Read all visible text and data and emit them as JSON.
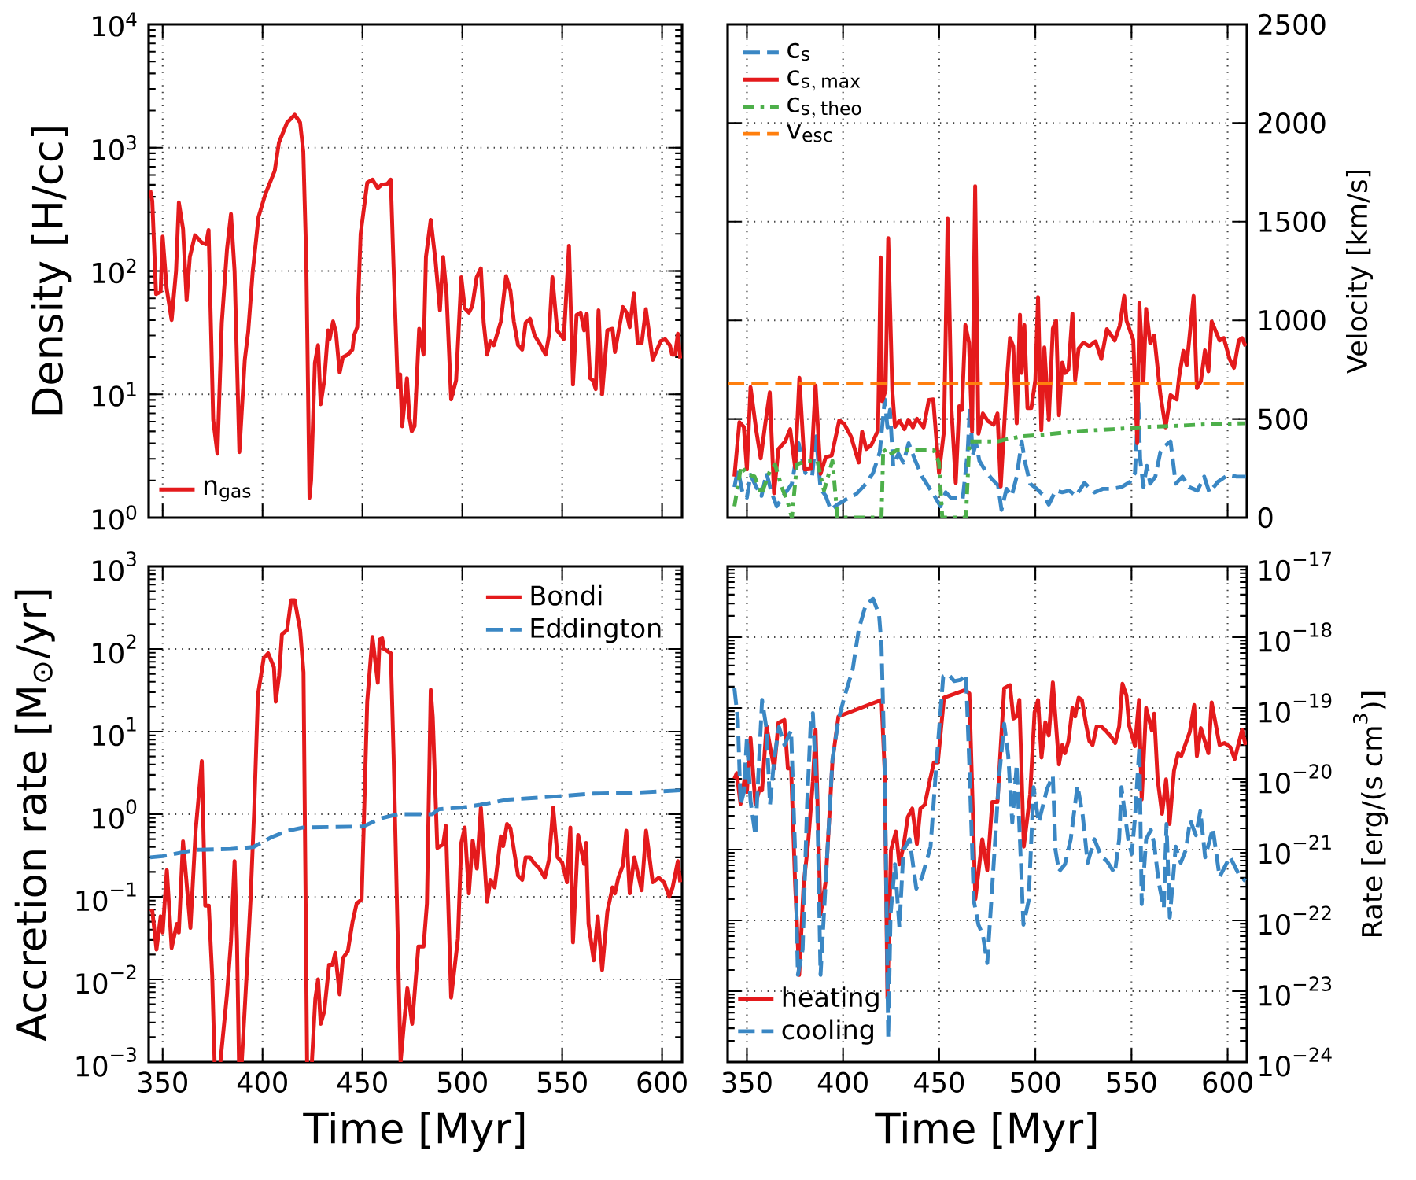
{
  "chart_data": [
    {
      "type": "line",
      "ylabel": "Density [H/cc]",
      "xlim": [
        343,
        610
      ],
      "xticks": [
        350,
        400,
        450,
        500,
        550,
        600
      ],
      "ylim": [
        1,
        10000
      ],
      "yticks": [
        {
          "value": 1,
          "label": "10$^{0}$"
        },
        {
          "value": 10,
          "label": "10$^{1}$"
        },
        {
          "value": 100,
          "label": "10$^{2}$"
        },
        {
          "value": 1000,
          "label": "10$^{3}$"
        },
        {
          "value": 10000,
          "label": "10$^{4}$"
        }
      ],
      "log": "y",
      "grid": true,
      "legend": "bottom left",
      "tick_labels": "y",
      "series": [
        {
          "name": "n$_{gas}$",
          "color": "#e41a1c",
          "line_style": "solid",
          "x": [
            343.8,
            344.8,
            346.7,
            349,
            350,
            352,
            354.5,
            356.7,
            358.1,
            360.2,
            362,
            363.6,
            366.2,
            369.6,
            371.7,
            373,
            375.3,
            377.4,
            379.6,
            382.2,
            384.2,
            386,
            388.4,
            391.1,
            392.8,
            395.1,
            398,
            401.4,
            406.1,
            408.2,
            412.3,
            416.1,
            418.8,
            420.4,
            421.9,
            423.5,
            424.3,
            426.2,
            427.8,
            429.1,
            430.9,
            432.8,
            433.6,
            435.3,
            436.7,
            438.6,
            440.2,
            442.7,
            445,
            445.8,
            447.4,
            449.1,
            452.4,
            455,
            457.7,
            459.6,
            462.5,
            464.2,
            465.6,
            467.7,
            468.9,
            469.9,
            472.3,
            473.5,
            474.7,
            476.1,
            478.4,
            480.6,
            481.8,
            484.2,
            486.6,
            488.8,
            490.4,
            492.1,
            494.4,
            496.9,
            499.5,
            501.2,
            503.3,
            505,
            507.2,
            509.3,
            510.7,
            512.4,
            514.1,
            515.8,
            519.3,
            521.9,
            524.1,
            525.8,
            527.9,
            530,
            531.7,
            533.9,
            536.2,
            538.6,
            541.7,
            543.4,
            545.1,
            547.5,
            550.8,
            553.4,
            555.4,
            557.2,
            559.2,
            561,
            562.3,
            564,
            565.4,
            566.8,
            568.2,
            570,
            572.6,
            575.2,
            576.4,
            580.4,
            582.2,
            583.8,
            585.9,
            587.8,
            589.8,
            591.9,
            595.3,
            599.3,
            601.5,
            603.9,
            605,
            606.5,
            607.9,
            609.1
          ],
          "values": [
            450,
            370,
            65,
            68,
            190,
            72,
            40,
            100,
            360,
            220,
            58,
            130,
            195,
            170,
            165,
            215,
            6.2,
            3.3,
            38,
            150,
            290,
            100,
            3.4,
            19,
            32,
            100,
            275,
            420,
            650,
            1100,
            1600,
            1850,
            1600,
            930,
            120,
            1.45,
            2.0,
            18,
            25,
            8.3,
            13,
            33,
            28,
            39,
            32,
            15,
            20,
            21,
            23,
            30,
            35,
            200,
            520,
            550,
            470,
            500,
            510,
            550,
            107,
            11.5,
            14.5,
            5.5,
            13.5,
            6.5,
            5.0,
            5.5,
            34,
            21,
            130,
            260,
            120,
            48,
            130,
            65,
            9.1,
            13,
            89,
            50,
            46,
            52,
            89,
            105,
            38,
            21,
            27,
            25,
            39,
            91,
            69,
            39,
            25,
            23,
            38,
            41,
            30,
            26,
            21,
            30,
            89,
            33,
            28,
            160,
            12,
            44,
            46,
            33,
            45,
            13.5,
            13,
            11,
            48,
            10,
            33,
            34,
            22,
            51,
            46,
            35,
            66,
            26,
            26,
            49,
            19,
            27,
            28,
            25,
            21,
            21,
            31,
            19.5
          ]
        }
      ]
    },
    {
      "type": "line",
      "y2label": "Velocity [km/s]",
      "xlim": [
        340,
        610
      ],
      "xticks": [
        350,
        400,
        450,
        500,
        550,
        600
      ],
      "y2lim": [
        0,
        2500
      ],
      "y2ticks": [
        0,
        500,
        1000,
        1500,
        2000,
        2500
      ],
      "grid": true,
      "legend": "top left",
      "tick_labels": "y",
      "series": [
        {
          "name": "\\mathrm{c}_{\\mathrm{s}}",
          "color": "#3a87c4",
          "line_style": "dashed",
          "axis": "y2",
          "x": [
            343.5,
            345.3,
            347.9,
            350,
            351.9,
            354.9,
            357.6,
            360.2,
            362.8,
            365.5,
            369,
            373.4,
            376.9,
            380.4,
            383.9,
            386,
            388.3,
            391,
            393.6,
            397.1,
            401.5,
            406.8,
            411.2,
            415.6,
            419.1,
            421.7,
            423.1,
            424.4,
            426.1,
            428.8,
            431.4,
            434.1,
            437.6,
            441.1,
            444.6,
            448.1,
            450.7,
            453.4,
            456,
            459.5,
            462.2,
            464.8,
            466,
            467.4,
            469.2,
            470.9,
            473.6,
            477.1,
            480.6,
            482.4,
            485,
            487.7,
            490.3,
            492.9,
            494.7,
            497.3,
            500.8,
            504.4,
            507,
            510.5,
            514,
            517.6,
            521.1,
            525.5,
            530.7,
            535.1,
            539.5,
            544.8,
            549.2,
            551.8,
            553.6,
            554.5,
            556.2,
            558,
            559.7,
            562.4,
            565,
            566.8,
            570.3,
            573,
            576.5,
            580,
            584.3,
            587.8,
            590.5,
            594.9,
            600.2,
            604.7,
            609.5
          ],
          "values": [
            155,
            244,
            119,
            101,
            217,
            155,
            110,
            226,
            128,
            57,
            110,
            172,
            377,
            226,
            208,
            412,
            146,
            110,
            39,
            66,
            92,
            119,
            164,
            226,
            332,
            599,
            457,
            546,
            262,
            324,
            279,
            377,
            288,
            208,
            155,
            101,
            57,
            128,
            101,
            101,
            92,
            332,
            564,
            315,
            377,
            288,
            244,
            199,
            164,
            39,
            146,
            110,
            208,
            386,
            279,
            172,
            146,
            110,
            66,
            137,
            128,
            137,
            110,
            176,
            128,
            146,
            146,
            155,
            181,
            226,
            581,
            297,
            155,
            262,
            172,
            208,
            332,
            359,
            386,
            172,
            208,
            155,
            137,
            208,
            128,
            181,
            217,
            208,
            208
          ]
        },
        {
          "name": "\\mathrm{c}_{\\mathrm{s,\\,max}}",
          "color": "#e41a1c",
          "line_style": "solid",
          "axis": "y2",
          "x": [
            343.5,
            346.1,
            348.4,
            350,
            351.9,
            354.9,
            357.2,
            359.3,
            361.9,
            364.1,
            366.4,
            369.9,
            372.5,
            375.1,
            377.3,
            380.1,
            383.4,
            385.7,
            388.3,
            391,
            394.1,
            398,
            400.6,
            404.1,
            408.2,
            409.9,
            412.1,
            414.7,
            418.2,
            419.6,
            420.3,
            422.1,
            423.5,
            425.6,
            427,
            429.3,
            431.9,
            434,
            436.3,
            438.4,
            441.9,
            444.6,
            446.9,
            449.9,
            452.5,
            454.4,
            456.4,
            458.6,
            460.4,
            461.8,
            463.6,
            465.5,
            467.1,
            468.7,
            470.4,
            472.7,
            475.4,
            478.3,
            480.3,
            482,
            485,
            486.8,
            488.5,
            490.3,
            492,
            492.9,
            494.3,
            495.9,
            497.9,
            500,
            501.4,
            503.1,
            504.7,
            507,
            509.1,
            510.8,
            512.3,
            514,
            515.4,
            517.2,
            519.3,
            520.7,
            522.5,
            525,
            528.1,
            531.3,
            534.3,
            537.2,
            541.3,
            543.9,
            546.2,
            547.4,
            550.9,
            553,
            554.1,
            556.2,
            557.6,
            559.7,
            561.8,
            565,
            567.7,
            570.3,
            573.5,
            574.7,
            577,
            578.7,
            582.3,
            584,
            586.1,
            588.2,
            590,
            591.7,
            595.8,
            598,
            601,
            603.3,
            605.8,
            607.5,
            609.3
          ],
          "values": [
            208,
            484,
            460,
            244,
            661,
            439,
            300,
            457,
            635,
            123,
            347,
            386,
            448,
            252,
            709,
            244,
            247,
            670,
            222,
            306,
            315,
            492,
            475,
            412,
            279,
            436,
            347,
            368,
            443,
            1319,
            590,
            644,
            1417,
            644,
            460,
            492,
            448,
            496,
            457,
            501,
            457,
            596,
            599,
            226,
            439,
            1515,
            546,
            176,
            564,
            546,
            976,
            887,
            436,
            1680,
            425,
            528,
            489,
            471,
            528,
            158,
            670,
            910,
            869,
            478,
            1029,
            733,
            976,
            555,
            555,
            697,
            1118,
            443,
            862,
            496,
            958,
            999,
            519,
            786,
            733,
            750,
            1035,
            697,
            857,
            887,
            869,
            893,
            804,
            955,
            898,
            973,
            1124,
            999,
            901,
            377,
            1088,
            688,
            1058,
            884,
            923,
            626,
            457,
            621,
            599,
            709,
            845,
            773,
            1124,
            656,
            692,
            848,
            741,
            994,
            898,
            910,
            804,
            759,
            898,
            910,
            869
          ]
        },
        {
          "name": "\\mathrm{c}_{\\mathrm{s,\\,theo}}",
          "color": "#4daf4a",
          "line_style": "dashdot",
          "axis": "y2",
          "x": [
            343.5,
            347,
            349.6,
            354,
            357.6,
            361.9,
            364.6,
            368.1,
            371.6,
            373.4,
            376,
            381.3,
            386.6,
            390.1,
            394.5,
            397.1,
            420,
            420.9,
            423.5,
            427.9,
            436.7,
            447.2,
            449.9,
            451.6,
            463.9,
            465.7,
            471.8,
            480.6,
            484.1,
            492.9,
            505.2,
            522.8,
            540.4,
            558,
            575.6,
            593.1,
            609
          ],
          "values": [
            57,
            261,
            226,
            208,
            119,
            235,
            270,
            155,
            66,
            0,
            270,
            288,
            288,
            137,
            288,
            0,
            0,
            350,
            315,
            341,
            341,
            341,
            279,
            0,
            0,
            386,
            386,
            386,
            395,
            412,
            421,
            439,
            448,
            460,
            466,
            475,
            478
          ]
        },
        {
          "name": "\\mathrm{v}_{\\mathrm{esc}}",
          "color": "#ff7f0e",
          "line_style": "dashed",
          "axis": "y2",
          "x": [
            340,
            610
          ],
          "values": [
            680,
            680
          ]
        }
      ]
    },
    {
      "type": "line",
      "xlabel": "Time [Myr]",
      "ylabel": "Accretion rate [M$_{⊙}$/yr]",
      "xlim": [
        343,
        610
      ],
      "xticks": [
        350,
        400,
        450,
        500,
        550,
        600
      ],
      "ylim": [
        0.001,
        1000
      ],
      "yticks": [
        {
          "value": 0.001,
          "label": "10$^{−3}$"
        },
        {
          "value": 0.01,
          "label": "10$^{−2}$"
        },
        {
          "value": 0.1,
          "label": "10$^{−1}$"
        },
        {
          "value": 1,
          "label": "10$^{0}$"
        },
        {
          "value": 10,
          "label": "10$^{1}$"
        },
        {
          "value": 100,
          "label": "10$^{2}$"
        },
        {
          "value": 1000,
          "label": "10$^{3}$"
        }
      ],
      "log": "y",
      "grid": true,
      "legend": "top right",
      "series": [
        {
          "name": "Bondi",
          "color": "#e41a1c",
          "line_style": "solid",
          "x": [
            343.8,
            344.8,
            346.9,
            349,
            350,
            352.1,
            354.5,
            357.1,
            358.1,
            360.2,
            363.9,
            366.5,
            369.6,
            371.3,
            373.1,
            374.8,
            376,
            377.5,
            378.9,
            382.2,
            384.2,
            386,
            387.2,
            388.2,
            388.9,
            389.6,
            392,
            394,
            395.8,
            397.7,
            400.6,
            402.8,
            405.7,
            406.6,
            408.3,
            409.7,
            412.3,
            414.3,
            416.1,
            418.8,
            420.5,
            422.3,
            423.5,
            424.7,
            426.4,
            427.8,
            429.1,
            430.9,
            433.3,
            435,
            436.4,
            438.6,
            440.2,
            442.7,
            445,
            447.1,
            449.6,
            450.8,
            452.4,
            455,
            457.7,
            458.6,
            459.9,
            460.8,
            464.2,
            465.6,
            469.1,
            470.8,
            472.5,
            474.9,
            478,
            480.6,
            482.3,
            484.2,
            485.2,
            487.5,
            490.4,
            491.8,
            494.4,
            497.8,
            499.5,
            501.2,
            503.3,
            505.2,
            507.3,
            509.3,
            512.4,
            514.1,
            516.2,
            519.3,
            520.5,
            522.4,
            524.1,
            527.9,
            530,
            531.7,
            533.9,
            535.7,
            538.6,
            541.3,
            543.4,
            545.5,
            547.7,
            550,
            552.4,
            554.1,
            555.4,
            558,
            561,
            562,
            563.2,
            565.8,
            567.8,
            570,
            572.6,
            575.2,
            576.4,
            578.1,
            580.4,
            582.1,
            583.8,
            586.1,
            589.8,
            592,
            595.3,
            598.4,
            601,
            603.6,
            605.3,
            607.9,
            609.1
          ],
          "values": [
            0.066,
            0.068,
            0.023,
            0.058,
            0.037,
            0.21,
            0.024,
            0.047,
            0.037,
            0.47,
            0.042,
            0.63,
            4.4,
            0.078,
            0.078,
            0.011,
            0.001,
            null,
            0.001,
            0.0066,
            0.029,
            0.27,
            0.029,
            0.001,
            null,
            0.001,
            0.011,
            0.093,
            1.1,
            28,
            78,
            89,
            60,
            23,
            48,
            150,
            170,
            390,
            390,
            170,
            52,
            0.001,
            null,
            0.001,
            0.0058,
            0.01,
            0.0029,
            0.0041,
            0.015,
            0.015,
            0.021,
            0.0066,
            0.018,
            0.022,
            0.049,
            0.083,
            0.093,
            0.93,
            23,
            140,
            39,
            130,
            135,
            100,
            89,
            5.2,
            0.001,
            0.0029,
            0.0078,
            0.0029,
            0.025,
            0.025,
            0.083,
            32,
            15,
            0.39,
            0.43,
            0.72,
            0.006,
            0.031,
            0.45,
            0.69,
            0.11,
            0.48,
            0.22,
            1.2,
            0.087,
            0.16,
            0.13,
            0.54,
            0.41,
            0.76,
            0.68,
            0.18,
            0.16,
            0.3,
            0.3,
            0.26,
            0.22,
            0.17,
            0.28,
            1.2,
            0.3,
            0.26,
            0.15,
            0.69,
            0.028,
            0.56,
            0.25,
            0.45,
            0.047,
            0.017,
            0.058,
            0.013,
            0.066,
            0.13,
            0.11,
            0.17,
            0.24,
            0.63,
            0.11,
            0.3,
            0.12,
            0.63,
            0.15,
            0.17,
            0.15,
            0.1,
            0.13,
            0.27,
            0.15
          ]
        },
        {
          "name": "Eddington",
          "color": "#3a87c4",
          "line_style": "dashed",
          "x": [
            343.8,
            350,
            366.2,
            384.2,
            395.4,
            404,
            412.6,
            420.4,
            450.5,
            459.1,
            467.7,
            484.9,
            488.3,
            499.5,
            509,
            522.7,
            548.6,
            565.8,
            583,
            609.6
          ],
          "values": [
            0.3,
            0.31,
            0.37,
            0.38,
            0.4,
            0.52,
            0.63,
            0.69,
            0.71,
            0.89,
            1.0,
            1.0,
            1.15,
            1.2,
            1.3,
            1.5,
            1.65,
            1.78,
            1.8,
            1.95
          ]
        }
      ]
    },
    {
      "type": "line",
      "xlabel": "Time [Myr]",
      "y2label": "Rate [erg/(s cm$^{3}$)]",
      "xlim": [
        340,
        610
      ],
      "xticks": [
        350,
        400,
        450,
        500,
        550,
        600
      ],
      "y2lim": [
        1e-24,
        1e-17
      ],
      "y2ticks": [
        {
          "value": 1e-24,
          "label": "10$^{−24}$"
        },
        {
          "value": 1e-23,
          "label": "10$^{−23}$"
        },
        {
          "value": 1e-22,
          "label": "10$^{−22}$"
        },
        {
          "value": 1e-21,
          "label": "10$^{−21}$"
        },
        {
          "value": 1e-20,
          "label": "10$^{−20}$"
        },
        {
          "value": 1e-19,
          "label": "10$^{−19}$"
        },
        {
          "value": 1e-18,
          "label": "10$^{−18}$"
        },
        {
          "value": 1e-17,
          "label": "10$^{−17}$"
        }
      ],
      "log": "y2",
      "grid": true,
      "legend": "bottom left",
      "series": [
        {
          "name": "heating",
          "color": "#e41a1c",
          "line_style": "solid",
          "axis": "y2",
          "x": [
            343.5,
            344.7,
            346.7,
            348.8,
            350,
            351.9,
            354.4,
            356.7,
            357.9,
            360.2,
            362,
            364.2,
            366.4,
            369.5,
            371.3,
            373,
            375.1,
            377.2,
            379.5,
            381.8,
            384.3,
            385.7,
            388.3,
            391,
            394.5,
            397.6,
            420,
            421.7,
            423.1,
            424.9,
            427.5,
            429.3,
            431.4,
            433.7,
            436,
            438.4,
            440.2,
            442.5,
            445,
            447.2,
            449.3,
            452.5,
            463.6,
            465.7,
            468.8,
            472.4,
            475,
            477.6,
            480.3,
            483.8,
            486.8,
            488.6,
            490.3,
            491.7,
            494,
            497.3,
            499.6,
            501.4,
            503.2,
            505.2,
            507,
            509.1,
            512.3,
            514,
            515.4,
            517.2,
            519.3,
            520.7,
            522.5,
            524.2,
            526.3,
            528.1,
            529.8,
            531.9,
            534.2,
            536.9,
            539.5,
            541.6,
            543.6,
            545.3,
            547.4,
            548.8,
            551.8,
            553.9,
            555.3,
            557.6,
            560.6,
            561.8,
            563.6,
            565.9,
            568,
            569.8,
            572.1,
            574.2,
            575.9,
            577.9,
            580.3,
            582.6,
            584,
            586.1,
            590,
            591.7,
            595.8,
            598.4,
            601.4,
            603.7,
            607.5,
            609.3
          ],
          "values": [
            1e-20,
            1.2e-20,
            4.4e-21,
            1e-20,
            6.5e-21,
            3.8e-20,
            4.4e-21,
            7.4e-21,
            6.9e-21,
            5.6e-20,
            2.9e-20,
            1.4e-20,
            6.2e-20,
            6.8e-20,
            1.4e-20,
            1.4e-20,
            3.2e-22,
            1.7e-23,
            3.2e-22,
            1.2e-21,
            9.1e-21,
            4.9e-20,
            1.2e-22,
            3.6e-22,
            1.8e-20,
            7.6e-20,
            1.3e-19,
            1.2e-20,
            7.9e-24,
            9.8e-22,
            1.8e-21,
            6.2e-22,
            1.1e-21,
            2.9e-21,
            3.8e-21,
            1.2e-21,
            3.8e-21,
            4.3e-21,
            9.1e-21,
            1.7e-20,
            1.7e-20,
            1.4e-19,
            1.8e-19,
            1.6e-19,
            2e-22,
            1.4e-21,
            5.1e-22,
            4.7e-21,
            4.7e-21,
            1.9e-19,
            2.1e-19,
            7.1e-20,
            7.6e-20,
            1.3e-19,
            1.1e-21,
            6e-21,
            8.7e-20,
            1.3e-19,
            2e-20,
            6.3e-20,
            4.1e-20,
            2.3e-19,
            1.6e-20,
            3e-20,
            2.3e-20,
            3.4e-20,
            1e-19,
            7.6e-20,
            1.4e-19,
            1.3e-19,
            6e-20,
            3.4e-20,
            3e-20,
            5.5e-20,
            5.5e-20,
            4.7e-20,
            3.9e-20,
            3.2e-20,
            5.5e-20,
            2.2e-19,
            1.5e-19,
            5.6e-20,
            2.9e-20,
            1.3e-19,
            5.1e-21,
            1e-19,
            4.8e-20,
            8.3e-20,
            9.8e-21,
            3.2e-21,
            9.8e-21,
            2.3e-21,
            1.3e-20,
            2.3e-20,
            2.1e-20,
            3e-20,
            4.6e-20,
            1.1e-19,
            2.1e-20,
            5.2e-20,
            2.3e-20,
            1.2e-19,
            3e-20,
            3.2e-20,
            2.8e-20,
            1.9e-20,
            4.9e-20,
            3e-20
          ]
        },
        {
          "name": "cooling",
          "color": "#3a87c4",
          "line_style": "dashed",
          "axis": "y2",
          "x": [
            343.5,
            345.3,
            346.7,
            348.4,
            350,
            351.9,
            354.4,
            357.9,
            360.2,
            362,
            364.2,
            366.7,
            369.5,
            373,
            375.1,
            376.5,
            379,
            381.3,
            383.1,
            384.3,
            386.6,
            388.3,
            391,
            394.5,
            397.6,
            400.6,
            405,
            408.2,
            411.7,
            415.6,
            418.7,
            420,
            421.7,
            423.5,
            424.7,
            427,
            429.3,
            431.4,
            434.6,
            438.1,
            441.1,
            445.5,
            448.6,
            452.1,
            454.8,
            457.8,
            461.3,
            463.9,
            465.7,
            468,
            470.4,
            472.7,
            475,
            477.1,
            478.9,
            481,
            483.8,
            485.9,
            488,
            490.3,
            492.6,
            493.8,
            496.5,
            499.1,
            501.7,
            506.1,
            509.1,
            510.5,
            512.3,
            515.4,
            518.4,
            521.9,
            524.6,
            527.2,
            530.7,
            534.2,
            537.2,
            541.3,
            543.6,
            544.8,
            546.6,
            548.3,
            550.1,
            551.8,
            554.1,
            555.3,
            557.6,
            560.1,
            561.8,
            564.1,
            566.8,
            568.2,
            569.9,
            573,
            575.6,
            578.2,
            580.5,
            583.5,
            585.8,
            588.3,
            592.3,
            595.8,
            601.2,
            605.6,
            609.2
          ],
          "values": [
            1.9e-19,
            6.8e-20,
            4.3e-21,
            6.5e-21,
            3.8e-20,
            4.8e-21,
            1.6e-21,
            1.3e-19,
            5.1e-20,
            4.3e-21,
            1.9e-20,
            5.4e-20,
            3e-20,
            4.8e-20,
            8.7e-22,
            1.7e-23,
            3.9e-23,
            4.3e-21,
            5.4e-20,
            8.5e-20,
            4.3e-21,
            1.7e-23,
            3.6e-22,
            1.9e-20,
            6.8e-20,
            1.4e-19,
            3.5e-19,
            1.3e-18,
            2.8e-18,
            3.5e-18,
            2.1e-18,
            7.6e-19,
            1.2e-20,
            2.2e-24,
            1.2e-22,
            6.2e-22,
            7.9e-23,
            9.8e-22,
            1.4e-21,
            2.8e-22,
            4.1e-22,
            1.1e-21,
            1.7e-20,
            2.8e-19,
            3e-19,
            2.4e-19,
            2.5e-19,
            3e-19,
            1.5e-20,
            1.9e-22,
            8.7e-23,
            6.2e-23,
            2.5e-23,
            1.9e-22,
            1.1e-21,
            9.5e-21,
            6e-20,
            2.1e-20,
            2.4e-21,
            1.6e-20,
            5.5e-22,
            8.7e-23,
            1.9e-22,
            7.6e-21,
            2.4e-21,
            7.2e-21,
            1.1e-20,
            9.8e-22,
            4.9e-22,
            6.2e-22,
            1.4e-21,
            8.1e-21,
            3.1e-21,
            6.5e-22,
            1.4e-21,
            8.1e-22,
            6.9e-22,
            4.6e-22,
            1.4e-21,
            7.6e-21,
            3.1e-21,
            1.4e-21,
            8.7e-22,
            2.8e-21,
            2.9e-20,
            1.7e-22,
            1.4e-21,
            1.9e-21,
            1.2e-21,
            3.5e-22,
            1.5e-22,
            2.3e-21,
            1.1e-22,
            1.1e-21,
            6.5e-22,
            9.8e-22,
            2.6e-21,
            1.6e-21,
            3.5e-21,
            7.8e-22,
            2e-21,
            4.1e-22,
            7.9e-22,
            4.6e-22,
            3.6e-22
          ]
        }
      ]
    }
  ]
}
